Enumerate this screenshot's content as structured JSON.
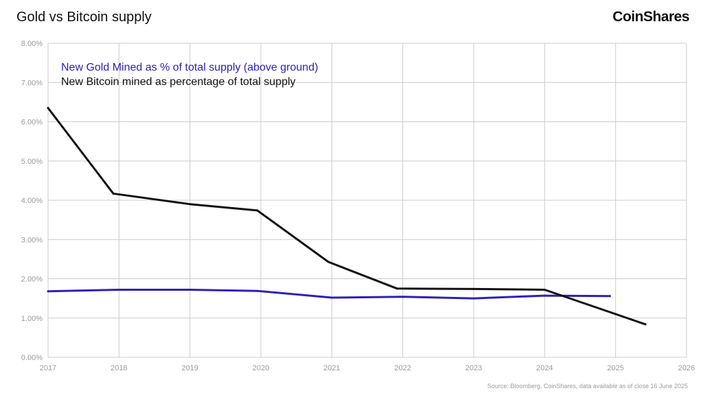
{
  "header": {
    "title": "Gold vs Bitcoin supply",
    "brand": "CoinShares"
  },
  "footer": {
    "source": "Source: Bloomberg, CoinShares, data available as of close 16 June 2025"
  },
  "colors": {
    "gold_series": "#2a22b8",
    "bitcoin_series": "#111111",
    "grid": "#cccccc",
    "tick_text": "#9a9a9a"
  },
  "chart_data": {
    "type": "line",
    "title": "Gold vs Bitcoin supply",
    "xlabel": "",
    "ylabel": "",
    "xlim": [
      2017,
      2026
    ],
    "ylim": [
      0,
      8
    ],
    "x_ticks": [
      "2017",
      "2018",
      "2019",
      "2020",
      "2021",
      "2022",
      "2023",
      "2024",
      "2025",
      "2026"
    ],
    "y_ticks": [
      "0.00%",
      "1.00%",
      "2.00%",
      "3.00%",
      "4.00%",
      "5.00%",
      "6.00%",
      "7.00%",
      "8.00%"
    ],
    "grid": true,
    "legend_position": "top-left",
    "series": [
      {
        "name": "New Gold Mined as % of total supply (above ground)",
        "color": "#2a22b8",
        "x": [
          2017,
          2018,
          2019,
          2019.95,
          2021,
          2022,
          2023,
          2024,
          2024.92
        ],
        "y": [
          1.68,
          1.72,
          1.72,
          1.69,
          1.52,
          1.54,
          1.5,
          1.57,
          1.56
        ]
      },
      {
        "name": "New Bitcoin mined as percentage of total supply",
        "color": "#111111",
        "x": [
          2017,
          2017.92,
          2019,
          2019.95,
          2020.95,
          2021.92,
          2023,
          2024,
          2025,
          2025.42
        ],
        "y": [
          6.35,
          4.17,
          3.9,
          3.74,
          2.43,
          1.75,
          1.74,
          1.72,
          1.1,
          0.84
        ]
      }
    ]
  }
}
